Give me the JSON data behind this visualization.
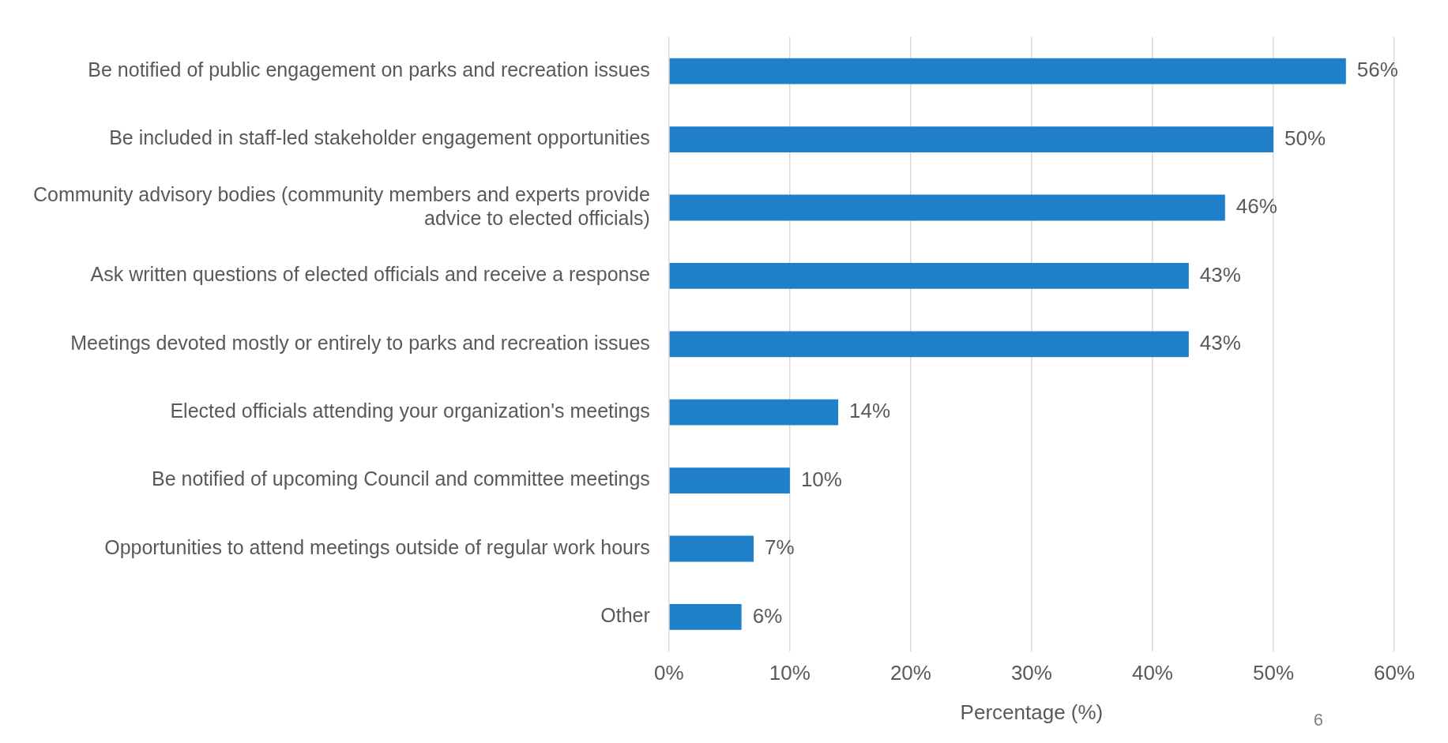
{
  "chart_data": {
    "type": "bar",
    "orientation": "horizontal",
    "xlabel": "Percentage (%)",
    "categories": [
      "Be notified of public engagement on parks and recreation issues",
      "Be included in staff-led stakeholder engagement opportunities",
      "Community advisory bodies (community members and experts provide advice to elected officials)",
      "Ask written questions of elected officials and receive a response",
      "Meetings devoted mostly or entirely to parks and recreation issues",
      "Elected officials attending your organization's meetings",
      "Be notified of upcoming Council and committee meetings",
      "Opportunities to attend meetings outside of regular work hours",
      "Other"
    ],
    "values": [
      56,
      50,
      46,
      43,
      43,
      14,
      10,
      7,
      6
    ],
    "value_labels": [
      "56%",
      "50%",
      "46%",
      "43%",
      "43%",
      "14%",
      "10%",
      "7%",
      "6%"
    ],
    "color": "#1f7fc9",
    "xlim": [
      0,
      60
    ],
    "xticks": [
      {
        "value": 0,
        "label": "0%"
      },
      {
        "value": 10,
        "label": "10%"
      },
      {
        "value": 20,
        "label": "20%"
      },
      {
        "value": 30,
        "label": "30%"
      },
      {
        "value": 40,
        "label": "40%"
      },
      {
        "value": 50,
        "label": "50%"
      },
      {
        "value": 60,
        "label": "60%"
      }
    ],
    "grid": "x",
    "legend": false,
    "annotations": [
      "6"
    ]
  }
}
